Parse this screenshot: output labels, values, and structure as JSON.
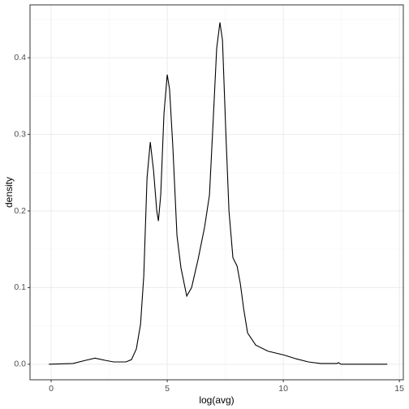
{
  "chart_data": {
    "type": "line",
    "x_label": "log(avg)",
    "y_label": "density",
    "x": [
      -0.1,
      0.94,
      1.47,
      1.89,
      2.34,
      2.69,
      3.22,
      3.46,
      3.67,
      3.85,
      3.99,
      4.13,
      4.27,
      4.41,
      4.55,
      4.62,
      4.72,
      4.86,
      5.0,
      5.1,
      5.24,
      5.42,
      5.59,
      5.84,
      6.05,
      6.33,
      6.61,
      6.82,
      6.96,
      7.13,
      7.27,
      7.38,
      7.52,
      7.66,
      7.83,
      8.01,
      8.15,
      8.29,
      8.46,
      8.81,
      9.34,
      10.03,
      10.56,
      11.08,
      11.61,
      12.31,
      12.38,
      12.48,
      14.48
    ],
    "values": [
      0,
      0.001,
      0.005,
      0.008,
      0.005,
      0.003,
      0.003,
      0.006,
      0.02,
      0.052,
      0.115,
      0.243,
      0.29,
      0.253,
      0.2,
      0.187,
      0.221,
      0.327,
      0.378,
      0.359,
      0.285,
      0.168,
      0.126,
      0.089,
      0.1,
      0.137,
      0.179,
      0.221,
      0.306,
      0.412,
      0.446,
      0.423,
      0.306,
      0.2,
      0.139,
      0.128,
      0.105,
      0.073,
      0.041,
      0.025,
      0.017,
      0.012,
      0.007,
      0.003,
      0.001,
      0.001,
      0.002,
      0,
      0
    ],
    "color": "#000000",
    "xlim": [
      -0.91,
      15.17
    ],
    "ylim": [
      -0.0203,
      0.469
    ],
    "xticks": [
      0,
      5,
      10,
      15
    ],
    "yticks": [
      {
        "value": 0,
        "label": "0.0"
      },
      0.1,
      0.2,
      0.3,
      0.4
    ],
    "x_minor_ticks": [
      2.5,
      7.5,
      12.5
    ],
    "y_minor_ticks": [
      0.05,
      0.15,
      0.25,
      0.35,
      0.45
    ],
    "grid": true
  }
}
